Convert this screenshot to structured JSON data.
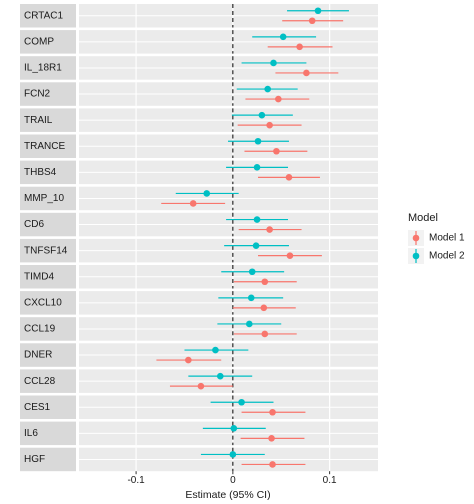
{
  "chart_data": {
    "type": "forest",
    "categories": [
      "CRTAC1",
      "COMP",
      "IL_18R1",
      "FCN2",
      "TRAIL",
      "TRANCE",
      "THBS4",
      "MMP_10",
      "CD6",
      "TNFSF14",
      "TIMD4",
      "CXCL10",
      "CCL19",
      "DNER",
      "CCL28",
      "CES1",
      "IL6",
      "HGF"
    ],
    "series": [
      {
        "name": "Model 1",
        "color": "#F8766D",
        "values": [
          0.082,
          0.069,
          0.076,
          0.047,
          0.038,
          0.045,
          0.058,
          -0.041,
          0.038,
          0.059,
          0.033,
          0.032,
          0.033,
          -0.046,
          -0.033,
          0.041,
          0.04,
          0.041
        ],
        "lower": [
          0.051,
          0.036,
          0.044,
          0.013,
          0.005,
          0.012,
          0.026,
          -0.074,
          0.006,
          0.026,
          0.001,
          0.0,
          0.001,
          -0.079,
          -0.065,
          0.009,
          0.008,
          0.009
        ],
        "upper": [
          0.114,
          0.103,
          0.109,
          0.079,
          0.071,
          0.077,
          0.09,
          -0.008,
          0.071,
          0.092,
          0.066,
          0.065,
          0.066,
          -0.012,
          0.0,
          0.075,
          0.074,
          0.075
        ]
      },
      {
        "name": "Model 2",
        "color": "#00BFC4",
        "values": [
          0.088,
          0.052,
          0.042,
          0.036,
          0.03,
          0.026,
          0.025,
          -0.027,
          0.025,
          0.024,
          0.02,
          0.019,
          0.017,
          -0.018,
          -0.013,
          0.009,
          0.001,
          0.0
        ],
        "lower": [
          0.056,
          0.02,
          0.009,
          0.004,
          -0.001,
          -0.005,
          -0.007,
          -0.059,
          -0.007,
          -0.009,
          -0.012,
          -0.015,
          -0.016,
          -0.05,
          -0.046,
          -0.023,
          -0.031,
          -0.033
        ],
        "upper": [
          0.12,
          0.086,
          0.076,
          0.067,
          0.062,
          0.058,
          0.057,
          0.006,
          0.057,
          0.058,
          0.053,
          0.052,
          0.05,
          0.016,
          0.02,
          0.042,
          0.034,
          0.033
        ]
      }
    ],
    "xlabel": "Estimate (95% CI)",
    "legend_title": "Model",
    "xlim": [
      -0.159,
      0.15
    ],
    "xticks": [
      -0.1,
      0,
      0.1
    ],
    "refline": 0,
    "grid": true
  }
}
